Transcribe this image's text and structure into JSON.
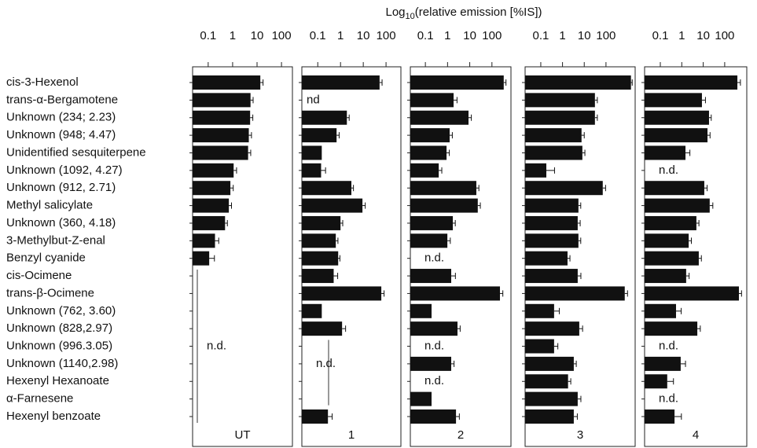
{
  "chart_data": {
    "type": "bar",
    "orientation": "horizontal",
    "log_scale": true,
    "color": "#111111",
    "title": {
      "main": "Log",
      "sub": "10",
      "rest": "(relative emission [%IS])"
    },
    "categories": [
      "cis-3-Hexenol",
      "trans-α-Bergamotene",
      "Unknown (234; 2.23)",
      "Unknown (948; 4.47)",
      "Unidentified sesquiterpene",
      "Unknown (1092, 4.27)",
      "Unknown (912, 2.71)",
      "Methyl salicylate",
      "Unknown (360, 4.18)",
      "3-Methylbut-Z-enal",
      "Benzyl cyanide",
      "cis-Ocimene",
      "trans-β-Ocimene",
      "Unknown (762, 3.60)",
      "Unknown (828,2.97)",
      "Unknown (996.3.05)",
      "Unknown (1140,2.98)",
      "Hexenyl Hexanoate",
      "α-Farnesene",
      "Hexenyl benzoate"
    ],
    "panels": [
      {
        "name": "UT",
        "xlim": [
          0.023,
          280
        ],
        "xticks": [
          0.1,
          1,
          10,
          100
        ],
        "values": [
          13.6,
          5.4,
          5.2,
          4.6,
          4.3,
          1.1,
          0.81,
          0.7,
          0.49,
          0.19,
          0.11,
          null,
          null,
          null,
          null,
          null,
          null,
          null,
          null,
          null
        ],
        "errors": [
          4,
          1.5,
          1.5,
          1.3,
          1.2,
          0.35,
          0.25,
          0.2,
          0.12,
          0.08,
          0.07,
          null,
          null,
          null,
          null,
          null,
          null,
          null,
          null,
          null
        ],
        "value_labels": [
          null,
          null,
          null,
          null,
          null,
          null,
          null,
          null,
          null,
          null,
          null,
          null,
          null,
          null,
          null,
          "n.d.",
          null,
          null,
          null,
          null
        ]
      },
      {
        "name": "1",
        "xlim": [
          0.02,
          450
        ],
        "xticks": [
          0.1,
          1,
          10,
          100
        ],
        "values": [
          52,
          null,
          1.9,
          0.67,
          0.15,
          0.14,
          3.0,
          9.2,
          1.0,
          0.62,
          0.79,
          0.5,
          62,
          0.15,
          1.17,
          null,
          null,
          null,
          null,
          0.28
        ],
        "errors": [
          15,
          null,
          0.5,
          0.2,
          null,
          0.08,
          0.7,
          3,
          0.25,
          0.15,
          0.15,
          0.25,
          20,
          null,
          0.5,
          null,
          null,
          null,
          null,
          0.15
        ],
        "value_labels": [
          null,
          "nd",
          null,
          null,
          null,
          null,
          null,
          null,
          null,
          null,
          null,
          null,
          null,
          null,
          null,
          null,
          "n.d.",
          null,
          null,
          null
        ]
      },
      {
        "name": "2",
        "xlim": [
          0.021,
          720
        ],
        "xticks": [
          0.1,
          1,
          10,
          100
        ],
        "values": [
          340,
          1.87,
          8.8,
          1.24,
          0.9,
          0.4,
          19.8,
          23,
          1.73,
          0.98,
          null,
          1.46,
          230,
          0.19,
          2.8,
          null,
          1.46,
          null,
          0.19,
          2.4
        ],
        "errors": [
          90,
          0.8,
          3,
          0.4,
          0.3,
          0.15,
          6,
          7,
          0.5,
          0.35,
          null,
          0.8,
          80,
          null,
          0.9,
          null,
          0.5,
          null,
          null,
          1
        ],
        "value_labels": [
          null,
          null,
          null,
          null,
          null,
          null,
          null,
          null,
          null,
          null,
          "n.d.",
          null,
          null,
          null,
          null,
          "n.d.",
          null,
          "n.d.",
          null,
          null
        ]
      },
      {
        "name": "3",
        "xlim": [
          0.019,
          2200
        ],
        "xticks": [
          0.1,
          1,
          10,
          100
        ],
        "values": [
          1410,
          31,
          31,
          7.5,
          8.2,
          0.18,
          71,
          5.4,
          5,
          5.4,
          1.7,
          5,
          730,
          0.41,
          5.9,
          0.41,
          3.3,
          1.8,
          5,
          3.3
        ],
        "errors": [
          200,
          9,
          9,
          2.5,
          2.5,
          0.25,
          25,
          1.5,
          1.5,
          1.5,
          0.5,
          2,
          250,
          0.3,
          2.5,
          0.2,
          1,
          0.6,
          2,
          1.5
        ],
        "value_labels": [
          null,
          null,
          null,
          null,
          null,
          null,
          null,
          null,
          null,
          null,
          null,
          null,
          null,
          null,
          null,
          null,
          null,
          null,
          null,
          null
        ]
      },
      {
        "name": "4",
        "xlim": [
          0.0185,
          1070
        ],
        "xticks": [
          0.1,
          1,
          10,
          100
        ],
        "values": [
          390,
          8.7,
          18.6,
          15.8,
          1.49,
          null,
          11.2,
          20,
          4.8,
          2.1,
          6.2,
          1.6,
          460,
          0.54,
          5.3,
          null,
          0.89,
          0.21,
          null,
          0.46
        ],
        "errors": [
          150,
          4,
          5,
          5,
          0.9,
          null,
          4,
          8,
          1.5,
          0.7,
          2,
          0.6,
          150,
          0.4,
          2,
          null,
          0.6,
          0.2,
          null,
          0.5
        ],
        "value_labels": [
          null,
          null,
          null,
          null,
          null,
          "n.d.",
          null,
          null,
          null,
          null,
          null,
          null,
          null,
          null,
          null,
          "n.d.",
          null,
          null,
          "n.d.",
          null
        ]
      }
    ]
  }
}
